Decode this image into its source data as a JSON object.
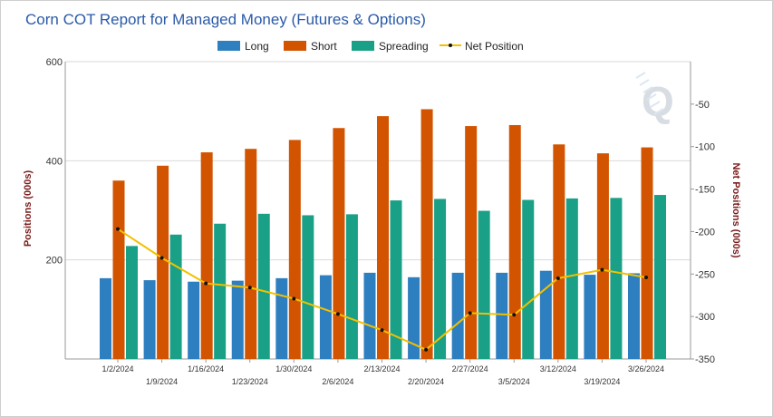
{
  "chart_data": {
    "type": "bar",
    "title": "Corn COT Report for Managed Money (Futures & Options)",
    "categories": [
      "1/2/2024",
      "1/9/2024",
      "1/16/2024",
      "1/23/2024",
      "1/30/2024",
      "2/6/2024",
      "2/13/2024",
      "2/20/2024",
      "2/27/2024",
      "3/5/2024",
      "3/12/2024",
      "3/19/2024",
      "3/26/2024"
    ],
    "series": [
      {
        "name": "Long",
        "color": "#2e7fc0",
        "values": [
          163,
          159,
          156,
          158,
          163,
          169,
          174,
          165,
          174,
          174,
          178,
          170,
          173
        ]
      },
      {
        "name": "Short",
        "color": "#d35400",
        "values": [
          360,
          390,
          417,
          424,
          442,
          466,
          490,
          504,
          470,
          472,
          433,
          415,
          427
        ]
      },
      {
        "name": "Spreading",
        "color": "#1aa086",
        "values": [
          228,
          251,
          273,
          293,
          290,
          292,
          320,
          323,
          299,
          321,
          324,
          325,
          331
        ]
      }
    ],
    "line_series": {
      "name": "Net Position",
      "color": "#f2c100",
      "marker_color": "#111111",
      "values": [
        -197,
        -231,
        -261,
        -266,
        -279,
        -297,
        -316,
        -339,
        -296,
        -298,
        -255,
        -245,
        -254
      ]
    },
    "ylabel": "Positions (000s)",
    "y2label": "Net Positions (000s)",
    "ylim": [
      0,
      600
    ],
    "y2lim": [
      -350,
      0
    ],
    "yticks": [
      "200",
      "400",
      "600"
    ],
    "y2ticks": [
      "-50",
      "-100",
      "-150",
      "-200",
      "-250",
      "-300",
      "-350"
    ],
    "legend_position": "top-center",
    "watermark": "Q"
  }
}
